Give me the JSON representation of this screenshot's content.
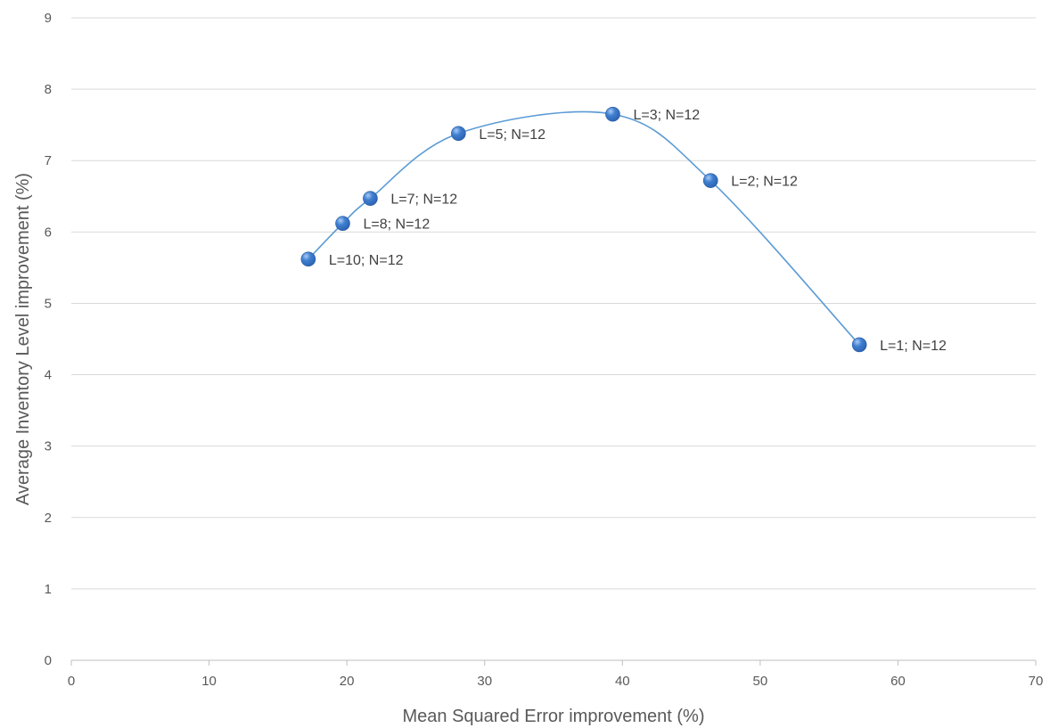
{
  "chart_data": {
    "type": "scatter",
    "title": "",
    "xlabel": "Mean Squared Error improvement (%)",
    "ylabel": "Average Inventory Level improvement (%)",
    "xlim": [
      0,
      70
    ],
    "ylim": [
      0,
      9
    ],
    "x_ticks": [
      0,
      10,
      20,
      30,
      40,
      50,
      60,
      70
    ],
    "y_ticks": [
      0,
      1,
      2,
      3,
      4,
      5,
      6,
      7,
      8,
      9
    ],
    "grid": "horizontal",
    "smoothed_line": true,
    "line_color": "#5b9bd5",
    "marker_color": "#2e64b5",
    "series": [
      {
        "points": [
          {
            "x": 17.2,
            "y": 5.62,
            "label": "L=10; N=12"
          },
          {
            "x": 19.7,
            "y": 6.12,
            "label": "L=8; N=12"
          },
          {
            "x": 21.7,
            "y": 6.47,
            "label": "L=7; N=12"
          },
          {
            "x": 28.1,
            "y": 7.38,
            "label": "L=5; N=12"
          },
          {
            "x": 39.3,
            "y": 7.65,
            "label": "L=3; N=12"
          },
          {
            "x": 46.4,
            "y": 6.72,
            "label": "L=2; N=12"
          },
          {
            "x": 57.2,
            "y": 4.42,
            "label": "L=1; N=12"
          }
        ]
      }
    ]
  }
}
